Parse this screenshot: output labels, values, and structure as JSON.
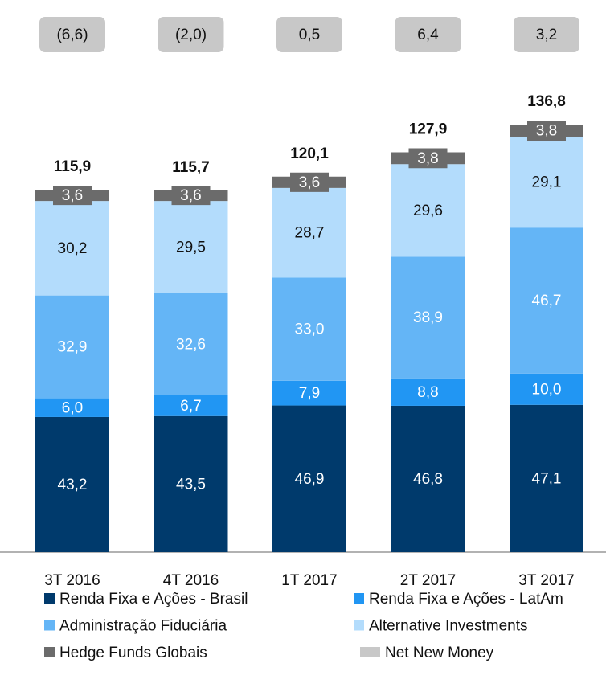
{
  "chart_data": {
    "type": "stacked_bar",
    "categories": [
      "3T 2016",
      "4T 2016",
      "1T 2017",
      "2T 2017",
      "3T 2017"
    ],
    "series": [
      {
        "name": "Renda Fixa e Ações - Brasil",
        "color": "#003a6c",
        "values": [
          43.2,
          43.5,
          46.9,
          46.8,
          47.1
        ],
        "value_labels": [
          "43,2",
          "43,5",
          "46,9",
          "46,8",
          "47,1"
        ]
      },
      {
        "name": "Renda Fixa e Ações - LatAm",
        "color": "#2196f3",
        "values": [
          6.0,
          6.7,
          7.9,
          8.8,
          10.0
        ],
        "value_labels": [
          "6,0",
          "6,7",
          "7,9",
          "8,8",
          "10,0"
        ]
      },
      {
        "name": "Administração Fiduciária",
        "color": "#64b5f6",
        "values": [
          32.9,
          32.6,
          33.0,
          38.9,
          46.7
        ],
        "value_labels": [
          "32,9",
          "32,6",
          "33,0",
          "38,9",
          "46,7"
        ]
      },
      {
        "name": "Alternative Investments",
        "color": "#b3dcfc",
        "values": [
          30.2,
          29.5,
          28.7,
          29.6,
          29.1
        ],
        "value_labels": [
          "30,2",
          "29,5",
          "28,7",
          "29,6",
          "29,1"
        ]
      },
      {
        "name": "Hedge Funds Globais",
        "color": "#6b6b6b",
        "values": [
          3.6,
          3.6,
          3.6,
          3.8,
          3.8
        ],
        "value_labels": [
          "3,6",
          "3,6",
          "3,6",
          "3,8",
          "3,8"
        ]
      }
    ],
    "totals": [
      115.9,
      115.7,
      120.1,
      127.9,
      136.8
    ],
    "total_labels": [
      "115,9",
      "115,7",
      "120,1",
      "127,9",
      "136,8"
    ],
    "net_new_money": {
      "name": "Net New Money",
      "color": "#c8c8c8",
      "values": [
        -6.6,
        -2.0,
        0.5,
        6.4,
        3.2
      ],
      "value_labels": [
        "(6,6)",
        "(2,0)",
        "0,5",
        "6,4",
        "3,2"
      ]
    }
  }
}
